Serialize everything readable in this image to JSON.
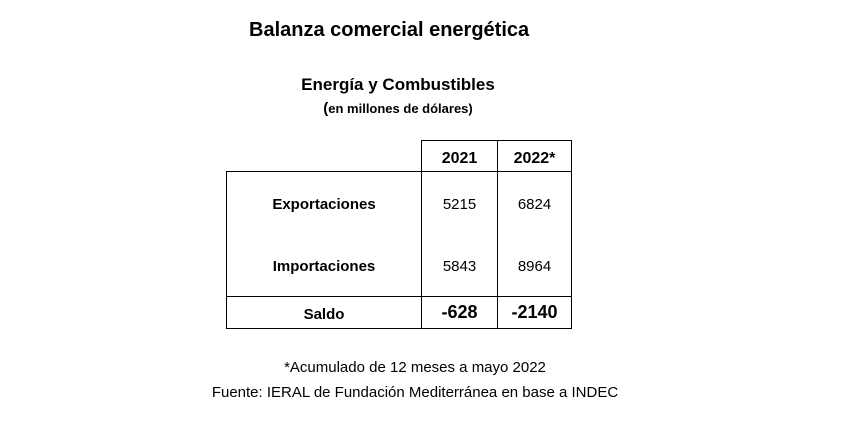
{
  "title": "Balanza comercial energética",
  "subtitle": "Energía y Combustibles",
  "unit_note": "en millones de dólares)",
  "unit_paren": "(",
  "table": {
    "columns": [
      "2021",
      "2022*"
    ],
    "rows": [
      {
        "label": "Exportaciones",
        "values": [
          "5215",
          "6824"
        ]
      },
      {
        "label": "Importaciones",
        "values": [
          "5843",
          "8964"
        ]
      }
    ],
    "total": {
      "label": "Saldo",
      "values": [
        "-628",
        "-2140"
      ]
    }
  },
  "footnote": "*Acumulado de 12 meses a mayo 2022",
  "source": "Fuente: IERAL de Fundación Mediterránea en base a INDEC"
}
